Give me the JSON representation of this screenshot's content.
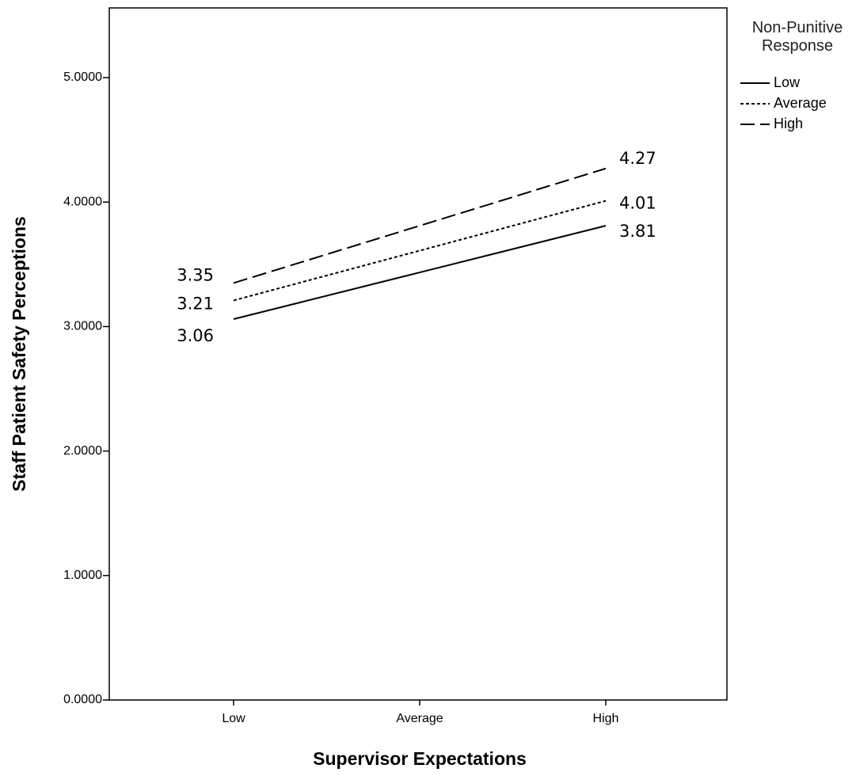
{
  "chart_data": {
    "type": "line",
    "x_label": "Supervisor Expectations",
    "y_label": "Staff Patient Safety Perceptions",
    "categories": [
      "Low",
      "Average",
      "High"
    ],
    "series": [
      {
        "name": "Low",
        "color": "#000000",
        "dash": "solid",
        "values": [
          3.06,
          3.435,
          3.81
        ],
        "value_labels": [
          "3.06",
          null,
          "3.81"
        ]
      },
      {
        "name": "Average",
        "color": "#000000",
        "dash": "dotted",
        "values": [
          3.21,
          3.61,
          4.01
        ],
        "value_labels": [
          "3.21",
          null,
          "4.01"
        ]
      },
      {
        "name": "High",
        "color": "#000000",
        "dash": "dashed",
        "values": [
          3.35,
          3.81,
          4.27
        ],
        "value_labels": [
          "3.35",
          null,
          "4.27"
        ]
      }
    ],
    "legend_title": "Non-Punitive Response",
    "legend_position": "outside-right",
    "ylim": [
      0,
      5.56
    ],
    "yticks": [
      {
        "value": 0,
        "label": "0.0000"
      },
      {
        "value": 1,
        "label": "1.0000"
      },
      {
        "value": 2,
        "label": "2.0000"
      },
      {
        "value": 3,
        "label": "3.0000"
      },
      {
        "value": 4,
        "label": "4.0000"
      },
      {
        "value": 5,
        "label": "5.0000"
      }
    ],
    "grid": false
  }
}
